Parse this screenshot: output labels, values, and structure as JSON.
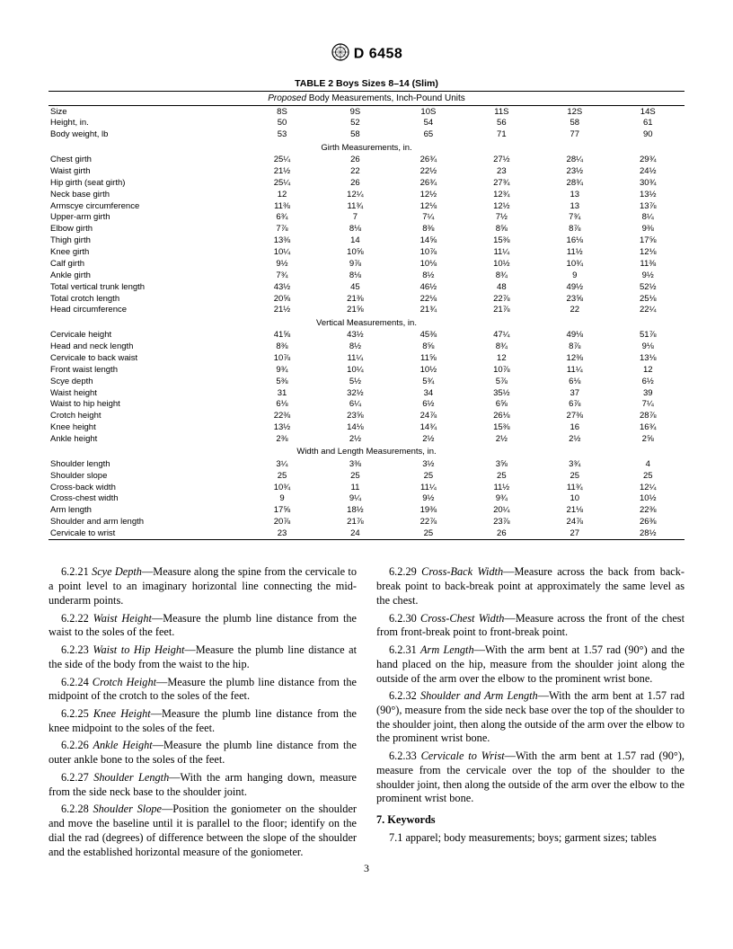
{
  "header": {
    "designation": "D 6458"
  },
  "table": {
    "title": "TABLE 2  Boys Sizes 8–14 (Slim)",
    "subtitle_prefix": "Proposed",
    "subtitle_rest": " Body Measurements, Inch-Pound Units",
    "columns": [
      "8S",
      "9S",
      "10S",
      "11S",
      "12S",
      "14S"
    ],
    "sections": [
      {
        "header": null,
        "rows": [
          {
            "label": "Size",
            "v": [
              "8S",
              "9S",
              "10S",
              "11S",
              "12S",
              "14S"
            ]
          },
          {
            "label": "Height, in.",
            "v": [
              "50",
              "52",
              "54",
              "56",
              "58",
              "61"
            ]
          },
          {
            "label": "Body weight, lb",
            "v": [
              "53",
              "58",
              "65",
              "71",
              "77",
              "90"
            ]
          }
        ]
      },
      {
        "header": "Girth Measurements, in.",
        "rows": [
          {
            "label": "Chest girth",
            "v": [
              "25¼",
              "26",
              "26¾",
              "27½",
              "28¼",
              "29¾"
            ]
          },
          {
            "label": "Waist girth",
            "v": [
              "21½",
              "22",
              "22½",
              "23",
              "23½",
              "24½"
            ]
          },
          {
            "label": "Hip girth (seat girth)",
            "v": [
              "25¼",
              "26",
              "26¾",
              "27¾",
              "28¾",
              "30¾"
            ]
          },
          {
            "label": "Neck base girth",
            "v": [
              "12",
              "12¼",
              "12½",
              "12¾",
              "13",
              "13½"
            ]
          },
          {
            "label": "Armscye circumference",
            "v": [
              "11⅜",
              "11¾",
              "12⅛",
              "12½",
              "13",
              "13⅞"
            ]
          },
          {
            "label": "Upper-arm girth",
            "v": [
              "6¾",
              "7",
              "7¼",
              "7½",
              "7¾",
              "8¼"
            ]
          },
          {
            "label": "Elbow girth",
            "v": [
              "7⅞",
              "8⅛",
              "8⅜",
              "8⅝",
              "8⅞",
              "9⅜"
            ]
          },
          {
            "label": "Thigh girth",
            "v": [
              "13⅜",
              "14",
              "14⅝",
              "15⅜",
              "16⅛",
              "17⅝"
            ]
          },
          {
            "label": "Knee girth",
            "v": [
              "10¼",
              "10⅝",
              "10⅞",
              "11¼",
              "11½",
              "12⅛"
            ]
          },
          {
            "label": "Calf girth",
            "v": [
              "9½",
              "9⅞",
              "10⅛",
              "10½",
              "10¾",
              "11⅜"
            ]
          },
          {
            "label": "Ankle girth",
            "v": [
              "7¾",
              "8⅛",
              "8½",
              "8¾",
              "9",
              "9½"
            ]
          },
          {
            "label": "Total vertical trunk length",
            "v": [
              "43½",
              "45",
              "46½",
              "48",
              "49½",
              "52½"
            ]
          },
          {
            "label": "Total crotch length",
            "v": [
              "20⅝",
              "21⅜",
              "22⅛",
              "22⅞",
              "23⅝",
              "25⅛"
            ]
          },
          {
            "label": "Head circumference",
            "v": [
              "21½",
              "21⅝",
              "21¾",
              "21⅞",
              "22",
              "22¼"
            ]
          }
        ]
      },
      {
        "header": "Vertical Measurements, in.",
        "rows": [
          {
            "label": "Cervicale height",
            "v": [
              "41⅝",
              "43½",
              "45⅜",
              "47¼",
              "49⅛",
              "51⅞"
            ]
          },
          {
            "label": "Head and neck length",
            "v": [
              "8⅜",
              "8½",
              "8⅝",
              "8¾",
              "8⅞",
              "9⅛"
            ]
          },
          {
            "label": "Cervicale to back waist",
            "v": [
              "10⅞",
              "11¼",
              "11⅝",
              "12",
              "12⅜",
              "13⅛"
            ]
          },
          {
            "label": "Front waist length",
            "v": [
              "9¾",
              "10¼",
              "10½",
              "10⅞",
              "11¼",
              "12"
            ]
          },
          {
            "label": "Scye depth",
            "v": [
              "5⅜",
              "5½",
              "5¾",
              "5⅞",
              "6⅛",
              "6½"
            ]
          },
          {
            "label": "Waist height",
            "v": [
              "31",
              "32½",
              "34",
              "35½",
              "37",
              "39"
            ]
          },
          {
            "label": "Waist to hip height",
            "v": [
              "6⅛",
              "6¼",
              "6½",
              "6⅝",
              "6⅞",
              "7¼"
            ]
          },
          {
            "label": "Crotch height",
            "v": [
              "22⅜",
              "23⅝",
              "24⅞",
              "26⅛",
              "27⅜",
              "28⅞"
            ]
          },
          {
            "label": "Knee height",
            "v": [
              "13½",
              "14⅛",
              "14¾",
              "15⅜",
              "16",
              "16¾"
            ]
          },
          {
            "label": "Ankle height",
            "v": [
              "2⅜",
              "2½",
              "2½",
              "2½",
              "2½",
              "2⅝"
            ]
          }
        ]
      },
      {
        "header": "Width and Length Measurements, in.",
        "rows": [
          {
            "label": "Shoulder length",
            "v": [
              "3¼",
              "3⅜",
              "3½",
              "3⅝",
              "3¾",
              "4"
            ]
          },
          {
            "label": "Shoulder slope",
            "v": [
              "25",
              "25",
              "25",
              "25",
              "25",
              "25"
            ]
          },
          {
            "label": "Cross-back width",
            "v": [
              "10¾",
              "11",
              "11¼",
              "11½",
              "11¾",
              "12¼"
            ]
          },
          {
            "label": "Cross-chest width",
            "v": [
              "9",
              "9¼",
              "9½",
              "9¾",
              "10",
              "10½"
            ]
          },
          {
            "label": "Arm length",
            "v": [
              "17⅝",
              "18½",
              "19⅜",
              "20¼",
              "21⅛",
              "22⅜"
            ]
          },
          {
            "label": "Shoulder and arm length",
            "v": [
              "20⅞",
              "21⅞",
              "22⅞",
              "23⅞",
              "24⅞",
              "26⅜"
            ]
          },
          {
            "label": "Cervicale to wrist",
            "v": [
              "23",
              "24",
              "25",
              "26",
              "27",
              "28½"
            ]
          }
        ]
      }
    ]
  },
  "definitions": [
    {
      "num": "6.2.21",
      "name": "Scye Depth",
      "text": "—Measure along the spine from the cervicale to a point level to an imaginary horizontal line connecting the mid-underarm points."
    },
    {
      "num": "6.2.22",
      "name": "Waist Height",
      "text": "—Measure the plumb line distance from the waist to the soles of the feet."
    },
    {
      "num": "6.2.23",
      "name": "Waist to Hip Height",
      "text": "—Measure the plumb line distance at the side of the body from the waist to the hip."
    },
    {
      "num": "6.2.24",
      "name": "Crotch Height",
      "text": "—Measure the plumb line distance from the midpoint of the crotch to the soles of the feet."
    },
    {
      "num": "6.2.25",
      "name": "Knee Height",
      "text": "—Measure the plumb line distance from the knee midpoint to the soles of the feet."
    },
    {
      "num": "6.2.26",
      "name": "Ankle Height",
      "text": "—Measure the plumb line distance from the outer ankle bone to the soles of the feet."
    },
    {
      "num": "6.2.27",
      "name": "Shoulder Length",
      "text": "—With the arm hanging down, measure from the side neck base to the shoulder joint."
    },
    {
      "num": "6.2.28",
      "name": "Shoulder Slope",
      "text": "—Position the goniometer on the shoulder and move the baseline until it is parallel to the floor; identify on the dial the rad (degrees) of difference between the slope of the shoulder and the established horizontal measure of the goniometer."
    },
    {
      "num": "6.2.29",
      "name": "Cross-Back Width",
      "text": "—Measure across the back from back-break point to back-break point at approximately the same level as the chest."
    },
    {
      "num": "6.2.30",
      "name": "Cross-Chest Width",
      "text": "—Measure across the front of the chest from front-break point to front-break point."
    },
    {
      "num": "6.2.31",
      "name": "Arm Length",
      "text": "—With the arm bent at 1.57 rad (90°) and the hand placed on the hip, measure from the shoulder joint along the outside of the arm over the elbow to the prominent wrist bone."
    },
    {
      "num": "6.2.32",
      "name": "Shoulder and Arm Length",
      "text": "—With the arm bent at 1.57 rad (90°), measure from the side neck base over the top of the shoulder to the shoulder joint, then along the outside of the arm over the elbow to the prominent wrist bone."
    },
    {
      "num": "6.2.33",
      "name": "Cervicale to Wrist",
      "text": "—With the arm bent at 1.57 rad (90°), measure from the cervicale over the top of the shoulder to the shoulder joint, then along the outside of the arm over the elbow to the prominent wrist bone."
    }
  ],
  "keywords": {
    "heading": "7. Keywords",
    "line_num": "7.1",
    "text": " apparel; body measurements; boys; garment sizes; tables"
  },
  "page_number": "3"
}
